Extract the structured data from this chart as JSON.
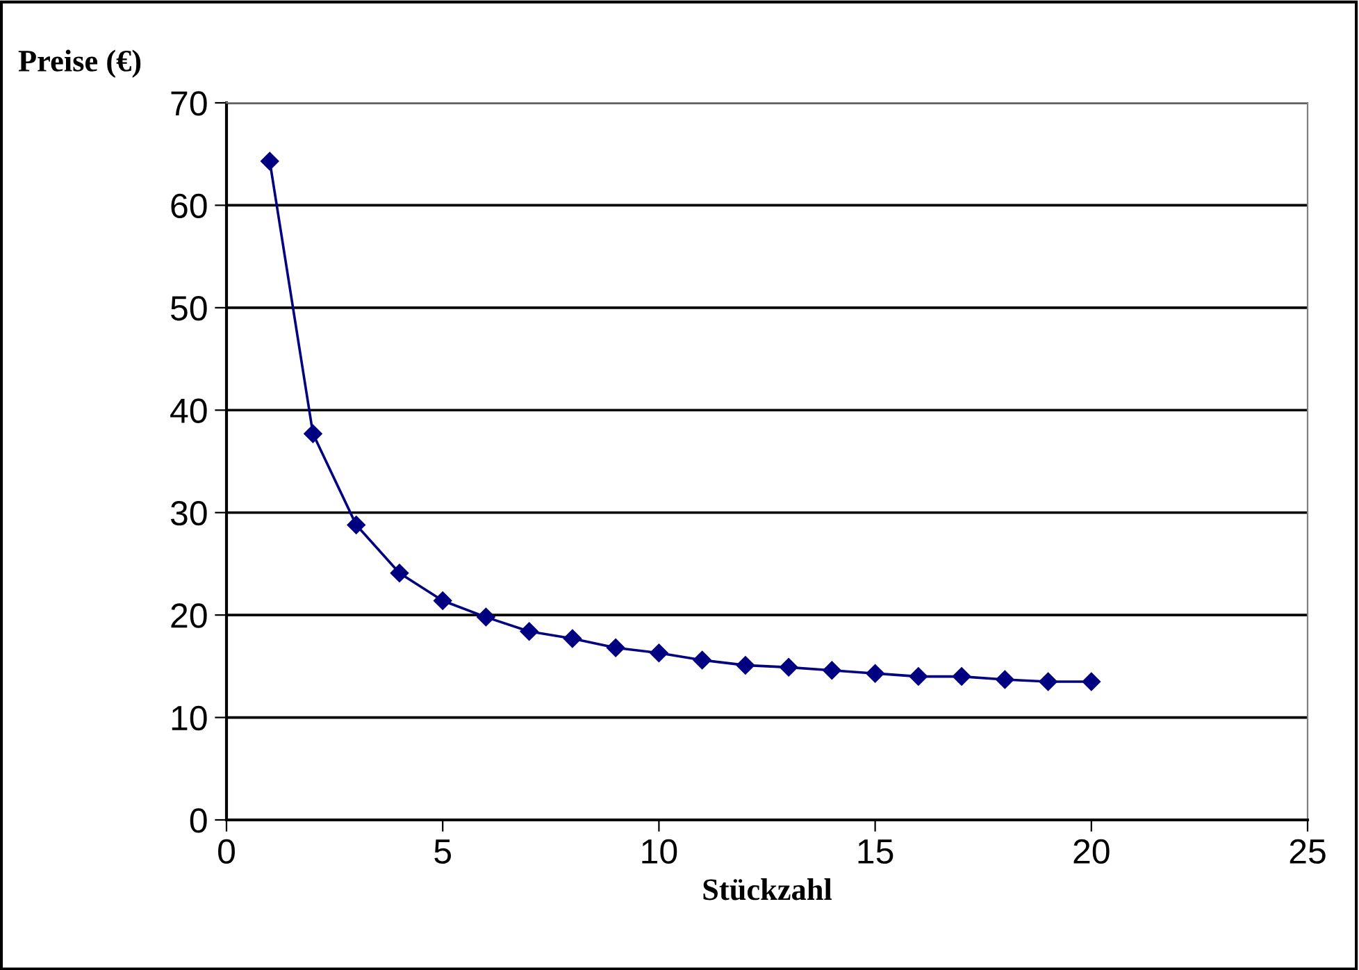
{
  "chart_data": {
    "type": "line",
    "xlabel": "Stückzahl",
    "ylabel": "Preise (€)",
    "x": [
      1,
      2,
      3,
      4,
      5,
      6,
      7,
      8,
      9,
      10,
      11,
      12,
      13,
      14,
      15,
      16,
      17,
      18,
      19,
      20
    ],
    "series": [
      {
        "color": "#000080",
        "values": [
          64.3,
          37.7,
          28.8,
          24.1,
          21.4,
          19.8,
          18.4,
          17.7,
          16.8,
          16.3,
          15.6,
          15.1,
          14.9,
          14.6,
          14.3,
          14.0,
          14.0,
          13.7,
          13.5,
          13.5
        ]
      }
    ],
    "xlim": [
      0,
      25
    ],
    "xticks": [
      0,
      5,
      10,
      15,
      20,
      25
    ],
    "ylim": [
      0,
      70
    ],
    "yticks": [
      0,
      10,
      20,
      30,
      40,
      50,
      60,
      70
    ],
    "grid": "y",
    "marker": "diamond",
    "line_style": "solid",
    "legend": false
  }
}
